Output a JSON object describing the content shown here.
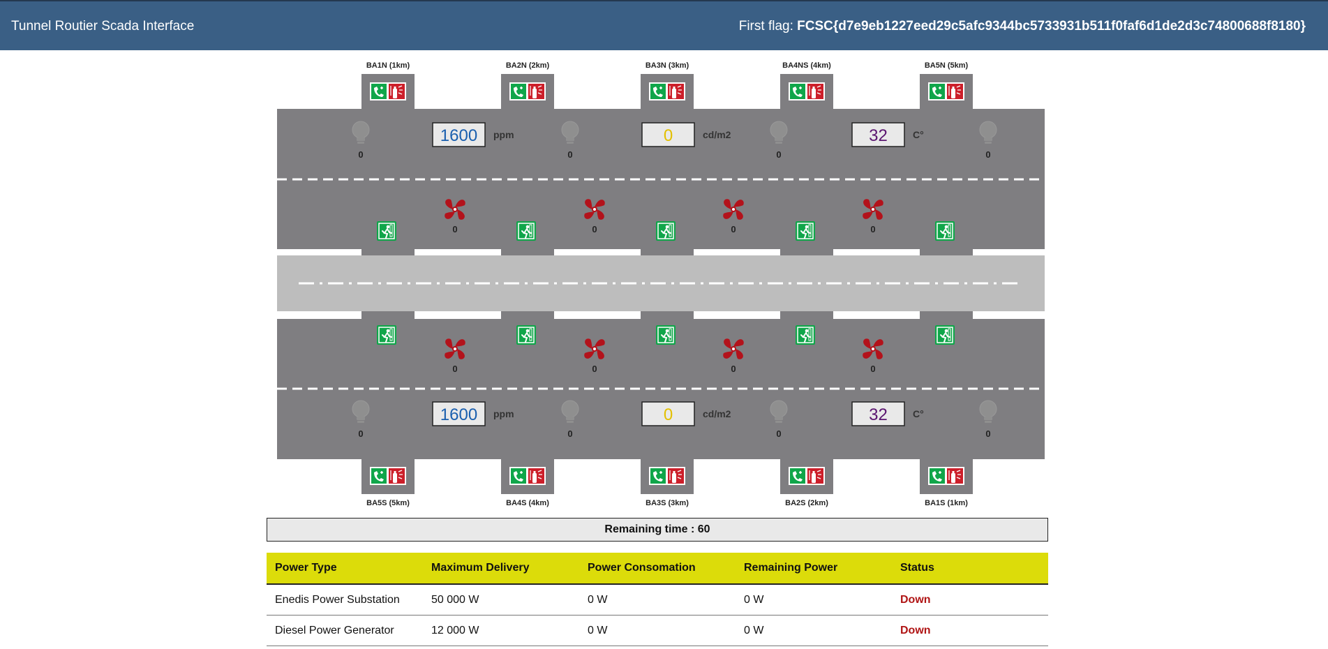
{
  "header": {
    "title": "Tunnel Routier Scada Interface",
    "flag_label": "First flag:",
    "flag_value": "FCSC{d7e9eb1227eed29c5afc9344bc5733931b511f0faf6d1de2d3c74800688f8180}"
  },
  "colors": {
    "header_bg": "#3a5f85",
    "fan": "#b3121b",
    "co_value": "#1a5fae",
    "lum_value": "#e3c000",
    "temp_value": "#5a1570",
    "table_head": "#dcdc0a",
    "status_down": "#b01515"
  },
  "stations_north": [
    "BA1N (1km)",
    "BA2N (2km)",
    "BA3N (3km)",
    "BA4NS (4km)",
    "BA5N (5km)"
  ],
  "stations_south": [
    "BA5S (5km)",
    "BA4S (4km)",
    "BA3S (3km)",
    "BA2S (2km)",
    "BA1S (1km)"
  ],
  "north": {
    "lights": [
      "0",
      "0",
      "0",
      "0"
    ],
    "fans": [
      "0",
      "0",
      "0",
      "0"
    ],
    "co": {
      "value": "1600",
      "unit": "ppm"
    },
    "lum": {
      "value": "0",
      "unit": "cd/m2"
    },
    "temp": {
      "value": "32",
      "unit": "C°"
    }
  },
  "south": {
    "lights": [
      "0",
      "0",
      "0",
      "0"
    ],
    "fans": [
      "0",
      "0",
      "0",
      "0"
    ],
    "co": {
      "value": "1600",
      "unit": "ppm"
    },
    "lum": {
      "value": "0",
      "unit": "cd/m2"
    },
    "temp": {
      "value": "32",
      "unit": "C°"
    }
  },
  "remaining": "Remaining time : 60",
  "power_table": {
    "headers": [
      "Power Type",
      "Maximum Delivery",
      "Power Consomation",
      "Remaining Power",
      "Status"
    ],
    "rows": [
      [
        "Enedis Power Substation",
        "50 000 W",
        "0 W",
        "0 W",
        "Down"
      ],
      [
        "Diesel Power Generator",
        "12 000 W",
        "0 W",
        "0 W",
        "Down"
      ]
    ]
  }
}
